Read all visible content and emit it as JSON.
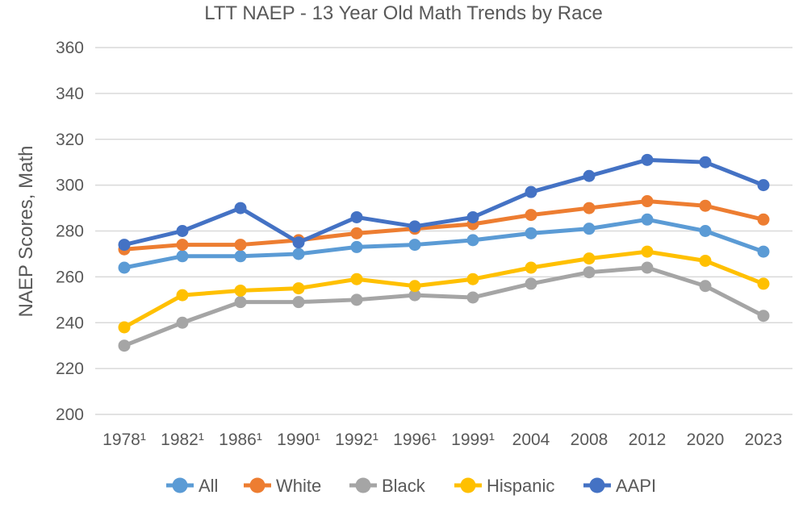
{
  "chart_data": {
    "type": "line",
    "title": "LTT NAEP - 13 Year Old Math Trends by Race",
    "ylabel": "NAEP Scores, Math",
    "xlabel": "",
    "ylim": [
      200,
      360
    ],
    "yticks": [
      "200",
      "220",
      "240",
      "260",
      "280",
      "300",
      "320",
      "340",
      "360"
    ],
    "grid": "horizontal",
    "legend_position": "bottom",
    "categories": [
      "1978¹",
      "1982¹",
      "1986¹",
      "1990¹",
      "1992¹",
      "1996¹",
      "1999¹",
      "2004",
      "2008",
      "2012",
      "2020",
      "2023"
    ],
    "series": [
      {
        "name": "All",
        "color": "#5b9bd5",
        "values": [
          264,
          269,
          269,
          270,
          273,
          274,
          276,
          279,
          281,
          285,
          280,
          271
        ]
      },
      {
        "name": "White",
        "color": "#ed7d31",
        "values": [
          272,
          274,
          274,
          276,
          279,
          281,
          283,
          287,
          290,
          293,
          291,
          285
        ]
      },
      {
        "name": "Black",
        "color": "#a5a5a5",
        "values": [
          230,
          240,
          249,
          249,
          250,
          252,
          251,
          257,
          262,
          264,
          256,
          243
        ]
      },
      {
        "name": "Hispanic",
        "color": "#ffc000",
        "values": [
          238,
          252,
          254,
          255,
          259,
          256,
          259,
          264,
          268,
          271,
          267,
          257
        ]
      },
      {
        "name": "AAPI",
        "color": "#4472c4",
        "values": [
          274,
          280,
          290,
          275,
          286,
          282,
          286,
          297,
          304,
          311,
          310,
          300
        ]
      }
    ]
  }
}
